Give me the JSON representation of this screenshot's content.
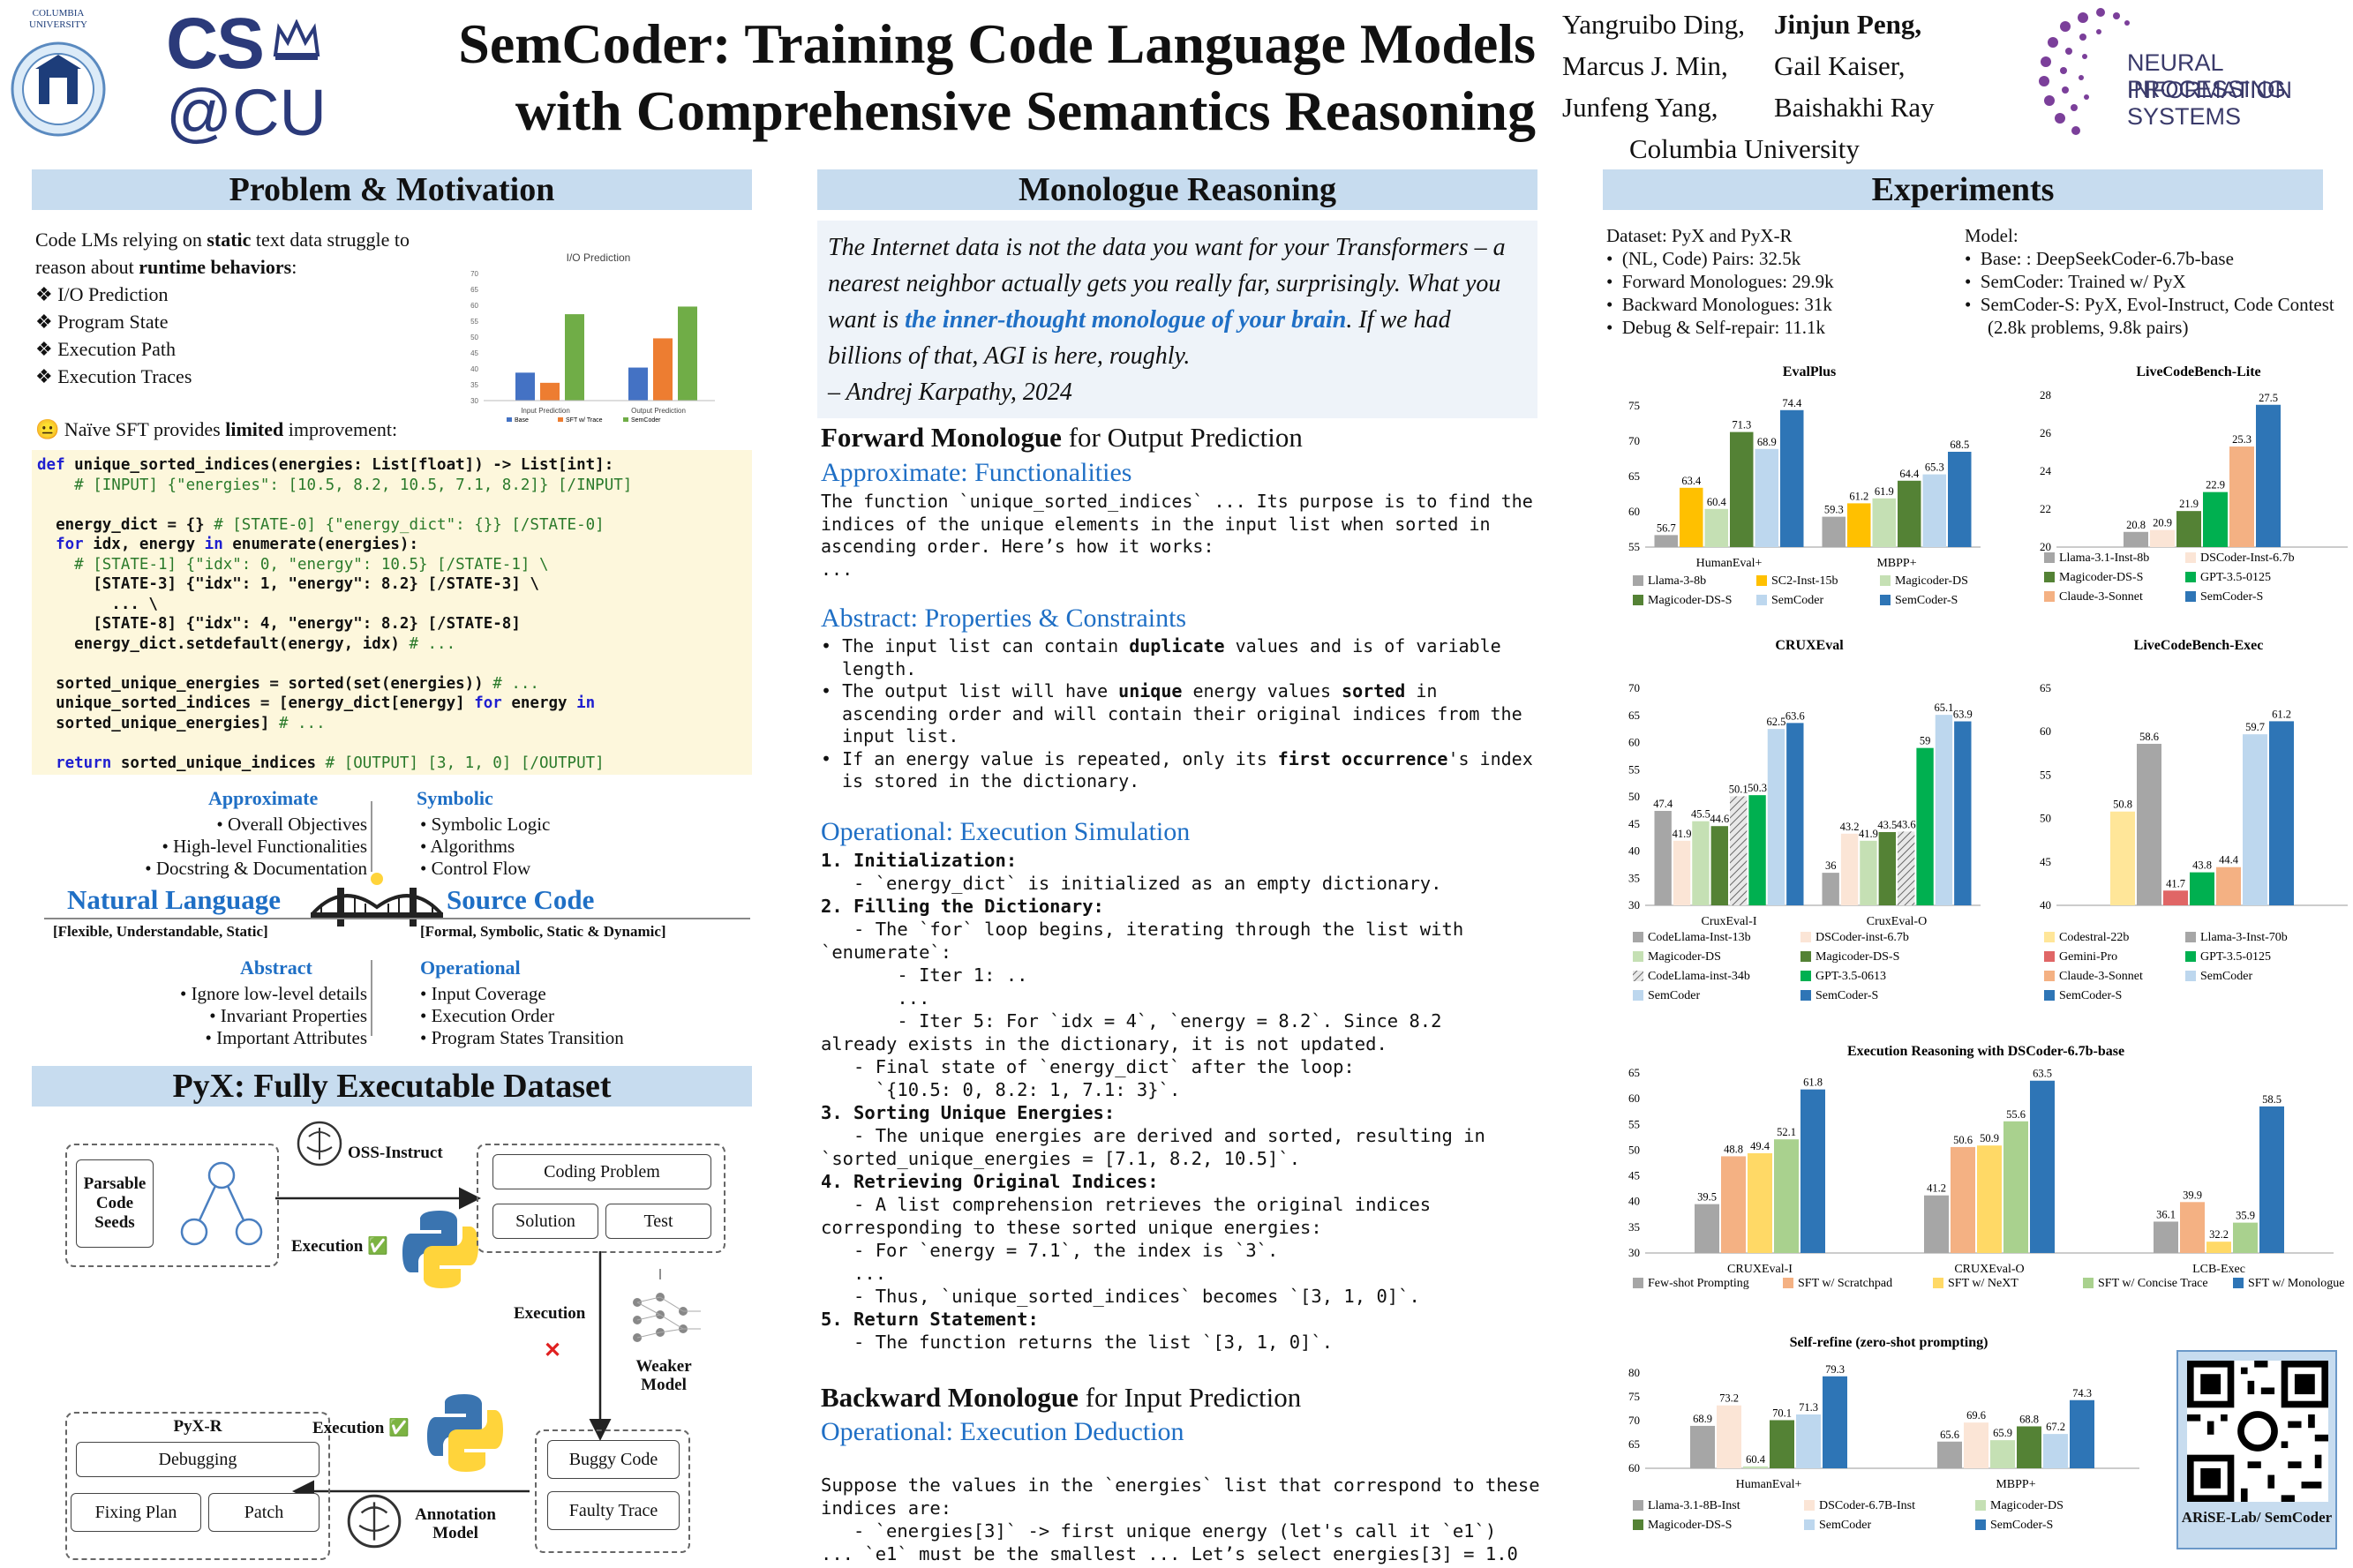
{
  "header": {
    "columbia_logo_text": "COLUMBIA UNIVERSITY",
    "cs_logo_line1": "CS",
    "cs_logo_line2": "@CU",
    "title_line1": "SemCoder: Training Code Language Models",
    "title_line2": "with Comprehensive Semantics Reasoning",
    "authors_col1": [
      "Yangruibo Ding,",
      "Marcus J. Min,",
      "Junfeng Yang,"
    ],
    "authors_col2": [
      "Jinjun Peng,",
      "Gail Kaiser,",
      "Baishakhi Ray"
    ],
    "affiliation": "Columbia University",
    "neurips_line1": "NEURAL INFORMATION",
    "neurips_line2": "PROCESSING SYSTEMS"
  },
  "sections": {
    "problem": "Problem & Motivation",
    "monologue": "Monologue Reasoning",
    "experiments": "Experiments",
    "pyx": "PyX: Fully Executable Dataset"
  },
  "problem": {
    "intro_a": "Code LMs relying on ",
    "intro_b": "static",
    "intro_c": " text data struggle to reason about ",
    "intro_d": "runtime behaviors",
    "intro_e": ":",
    "items": [
      "I/O Prediction",
      "Program State",
      "Execution Path",
      "Execution Traces"
    ],
    "naive_a": "Naïve SFT provides ",
    "naive_b": "limited",
    "naive_c": " improvement:"
  },
  "io_chart": {
    "title": "I/O Prediction",
    "categories": [
      "Input Prediction",
      "Output Prediction"
    ],
    "legend": [
      "Base",
      "SFT w/ Trace",
      "SemCoder"
    ],
    "yticks": [
      "70",
      "65",
      "60",
      "55",
      "50",
      "45",
      "40",
      "35",
      "30"
    ]
  },
  "code_lines": [
    "def unique_sorted_indices(energies: List[float]) -> List[int]:",
    "    # [INPUT] {\"energies\": [10.5, 8.2, 10.5, 7.1, 8.2]} [/INPUT]",
    "",
    "  energy_dict = {} # [STATE-0] {\"energy_dict\": {}} [/STATE-0]",
    "  for idx, energy in enumerate(energies):",
    "    # [STATE-1] {\"idx\": 0, \"energy\": 10.5} [/STATE-1] \\",
    "      [STATE-3] {\"idx\": 1, \"energy\": 8.2} [/STATE-3] \\",
    "        ... \\",
    "      [STATE-8] {\"idx\": 4, \"energy\": 8.2} [/STATE-8]",
    "    energy_dict.setdefault(energy, idx) # ...",
    "",
    "  sorted_unique_energies = sorted(set(energies)) # ...",
    "  unique_sorted_indices = [energy_dict[energy] for energy in",
    "  sorted_unique_energies] # ...",
    "",
    "  return sorted_unique_indices # [OUTPUT] [3, 1, 0] [/OUTPUT]"
  ],
  "bridge": {
    "approximate_title": "Approximate",
    "approximate_items": [
      "Overall Objectives",
      "High-level Functionalities",
      "Docstring & Documentation"
    ],
    "symbolic_title": "Symbolic",
    "symbolic_items": [
      "Symbolic Logic",
      "Algorithms",
      "Control Flow"
    ],
    "nl_title": "Natural Language",
    "nl_sub": "[Flexible, Understandable, Static]",
    "sc_title": "Source Code",
    "sc_sub": "[Formal, Symbolic, Static & Dynamic]",
    "abstract_title": "Abstract",
    "abstract_items": [
      "Ignore low-level details",
      "Invariant Properties",
      "Important Attributes"
    ],
    "operational_title": "Operational",
    "operational_items": [
      "Input Coverage",
      "Execution Order",
      "Program States Transition"
    ]
  },
  "pyx": {
    "seeds": "Parsable Code Seeds",
    "oss": "OSS-Instruct",
    "coding_problem": "Coding Problem",
    "solution": "Solution",
    "test": "Test",
    "execution1": "Execution",
    "execution2": "Execution",
    "execution3": "Execution",
    "weaker_model": "Weaker Model",
    "pyxr": "PyX-R",
    "debugging": "Debugging",
    "fixing_plan": "Fixing Plan",
    "patch": "Patch",
    "buggy_code": "Buggy Code",
    "faulty_trace": "Faulty Trace",
    "annotation_model": "Annotation Model",
    "check": "✅",
    "cross": "✕"
  },
  "monologue": {
    "quote_a": "The Internet data is not the data you want for your Transformers – a nearest neighbor actually gets you really far, surprisingly. What you want is ",
    "quote_b": "the inner-thought monologue of your brain",
    "quote_c": ". If we had billions of that, AGI is here, roughly.",
    "quote_author": "– Andrej Karpathy, 2024",
    "forward_a": "Forward Monologue",
    "forward_b": " for Output Prediction",
    "approx_head": "Approximate: Functionalities",
    "approx_text": "The function `unique_sorted_indices` ... Its purpose is to find the indices of the unique elements in the input list when sorted in ascending order. Here’s how it works:\n...",
    "abstract_head": "Abstract: Properties & Constraints",
    "abstract_bullets": [
      [
        "The input list can contain ",
        "duplicate",
        " values and is of variable length."
      ],
      [
        "The output list will have ",
        "unique",
        " energy values ",
        "sorted",
        " in ascending order and will contain their original indices from the input list."
      ],
      [
        "If an energy value is repeated, only its ",
        "first occurrence",
        "'s index is stored in the dictionary."
      ]
    ],
    "operational_head": "Operational: Execution Simulation",
    "operational_lines": [
      [
        "b",
        "1. Initialization:"
      ],
      [
        "n",
        "   - `energy_dict` is initialized as an empty dictionary."
      ],
      [
        "b",
        "2. Filling the Dictionary:"
      ],
      [
        "n",
        "   - The `for` loop begins, iterating through the list with"
      ],
      [
        "n",
        "`enumerate`:"
      ],
      [
        "n",
        "       - Iter 1: .."
      ],
      [
        "n",
        "       ..."
      ],
      [
        "n",
        "       - Iter 5: For `idx = 4`, `energy = 8.2`. Since 8.2"
      ],
      [
        "n",
        "already exists in the dictionary, it is not updated."
      ],
      [
        "n",
        "   - Final state of `energy_dict` after the loop:"
      ],
      [
        "n",
        "     `{10.5: 0, 8.2: 1, 7.1: 3}`."
      ],
      [
        "b",
        "3. Sorting Unique Energies:"
      ],
      [
        "n",
        "   - The unique energies are derived and sorted, resulting in"
      ],
      [
        "n",
        "`sorted_unique_energies = [7.1, 8.2, 10.5]`."
      ],
      [
        "b",
        "4. Retrieving Original Indices:"
      ],
      [
        "n",
        "   - A list comprehension retrieves the original indices"
      ],
      [
        "n",
        "corresponding to these sorted unique energies:"
      ],
      [
        "n",
        "   - For `energy = 7.1`, the index is `3`."
      ],
      [
        "n",
        "   ..."
      ],
      [
        "n",
        "   - Thus, `unique_sorted_indices` becomes `[3, 1, 0]`."
      ],
      [
        "b",
        "5. Return Statement:"
      ],
      [
        "n",
        "   - The function returns the list `[3, 1, 0]`."
      ]
    ],
    "backward_a": "Backward Monologue",
    "backward_b": " for Input Prediction",
    "deduction_head": "Operational: Execution Deduction",
    "deduction_lines": [
      "Suppose the values in the `energies` list that correspond to these",
      "indices are:",
      "   - `energies[3]` -> first unique energy (let's call it `e1`)",
      "... `e1` must be the smallest ... Let’s select energies[3] = 1.0"
    ]
  },
  "experiments": {
    "dataset_title": "Dataset: PyX and PyX-R",
    "dataset_items": [
      "(NL, Code) Pairs: 32.5k",
      "Forward Monologues: 29.9k",
      "Backward Monologues: 31k",
      "Debug & Self-repair: 11.1k"
    ],
    "model_title": "Model:",
    "model_items": [
      "Base: : DeepSeekCoder-6.7b-base",
      "SemCoder: Trained w/ PyX",
      "SemCoder-S: PyX, Evol-Instruct, Code Contest (2.8k problems, 9.8k pairs)"
    ],
    "qr_caption": "ARiSE-Lab/ SemCoder"
  },
  "chart_data": [
    {
      "type": "bar",
      "title": "EvalPlus",
      "categories": [
        "HumanEval+",
        "MBPP+"
      ],
      "ylim": [
        55,
        75
      ],
      "yticks": [
        55,
        60,
        65,
        70,
        75
      ],
      "series": [
        {
          "name": "Llama-3-8b",
          "color": "#a6a6a6",
          "values": [
            56.7,
            59.3
          ]
        },
        {
          "name": "SC2-Inst-15b",
          "color": "#ffc000",
          "values": [
            63.4,
            61.2
          ]
        },
        {
          "name": "Magicoder-DS",
          "color": "#c5e0b4",
          "values": [
            60.4,
            61.9
          ]
        },
        {
          "name": "Magicoder-DS-S",
          "color": "#548235",
          "values": [
            71.3,
            64.4
          ]
        },
        {
          "name": "SemCoder",
          "color": "#bdd7ee",
          "values": [
            68.9,
            65.3
          ]
        },
        {
          "name": "SemCoder-S",
          "color": "#2e75b6",
          "values": [
            74.4,
            68.5
          ]
        }
      ]
    },
    {
      "type": "bar",
      "title": "LiveCodeBench-Lite",
      "categories": [
        ""
      ],
      "ylim": [
        20,
        28
      ],
      "yticks": [
        20,
        22,
        24,
        26,
        28
      ],
      "series": [
        {
          "name": "Llama-3.1-Inst-8b",
          "color": "#a6a6a6",
          "values": [
            20.8
          ]
        },
        {
          "name": "DSCoder-Inst-6.7b",
          "color": "#fbe5d6",
          "values": [
            20.9
          ]
        },
        {
          "name": "Magicoder-DS-S",
          "color": "#548235",
          "values": [
            21.9
          ]
        },
        {
          "name": "GPT-3.5-0125",
          "color": "#00b050",
          "values": [
            22.9
          ]
        },
        {
          "name": "Claude-3-Sonnet",
          "color": "#f4b183",
          "values": [
            25.3
          ]
        },
        {
          "name": "SemCoder-S",
          "color": "#2e75b6",
          "values": [
            27.5
          ]
        }
      ]
    },
    {
      "type": "bar",
      "title": "CRUXEval",
      "categories": [
        "CruxEval-I",
        "CruxEval-O"
      ],
      "ylim": [
        30,
        70
      ],
      "yticks": [
        30,
        35,
        40,
        45,
        50,
        55,
        60,
        65,
        70
      ],
      "series": [
        {
          "name": "CodeLlama-Inst-13b",
          "color": "#a6a6a6",
          "values": [
            47.4,
            36
          ]
        },
        {
          "name": "DSCoder-inst-6.7b",
          "color": "#fbe5d6",
          "values": [
            41.9,
            43.2
          ]
        },
        {
          "name": "Magicoder-DS",
          "color": "#c5e0b4",
          "values": [
            45.5,
            41.9
          ]
        },
        {
          "name": "Magicoder-DS-S",
          "color": "#548235",
          "values": [
            44.6,
            43.5
          ]
        },
        {
          "name": "CodeLlama-inst-34b",
          "color": "#d9d9d9",
          "hatch": true,
          "values": [
            50.1,
            43.6
          ]
        },
        {
          "name": "GPT-3.5-0613",
          "color": "#00b050",
          "values": [
            50.3,
            59
          ]
        },
        {
          "name": "SemCoder",
          "color": "#bdd7ee",
          "values": [
            62.5,
            65.1
          ]
        },
        {
          "name": "SemCoder-S",
          "color": "#2e75b6",
          "values": [
            63.6,
            63.9
          ]
        }
      ]
    },
    {
      "type": "bar",
      "title": "LiveCodeBench-Exec",
      "categories": [
        ""
      ],
      "ylim": [
        40,
        65
      ],
      "yticks": [
        40,
        45,
        50,
        55,
        60,
        65
      ],
      "series": [
        {
          "name": "Codestral-22b",
          "color": "#ffe699",
          "values": [
            50.8
          ]
        },
        {
          "name": "Llama-3-Inst-70b",
          "color": "#a6a6a6",
          "values": [
            58.6
          ]
        },
        {
          "name": "Gemini-Pro",
          "color": "#e06666",
          "values": [
            41.7
          ]
        },
        {
          "name": "GPT-3.5-0125",
          "color": "#00b050",
          "values": [
            43.8
          ]
        },
        {
          "name": "Claude-3-Sonnet",
          "color": "#f4b183",
          "values": [
            44.4
          ]
        },
        {
          "name": "SemCoder",
          "color": "#bdd7ee",
          "values": [
            59.7
          ]
        },
        {
          "name": "SemCoder-S",
          "color": "#2e75b6",
          "values": [
            61.2
          ]
        }
      ]
    },
    {
      "type": "bar",
      "title": "Execution Reasoning with DSCoder-6.7b-base",
      "categories": [
        "CRUXEval-I",
        "CRUXEval-O",
        "LCB-Exec"
      ],
      "ylim": [
        30,
        65
      ],
      "yticks": [
        30,
        35,
        40,
        45,
        50,
        55,
        60,
        65
      ],
      "series": [
        {
          "name": "Few-shot Prompting",
          "color": "#a6a6a6",
          "values": [
            39.5,
            41.2,
            36.1
          ]
        },
        {
          "name": "SFT w/ Scratchpad",
          "color": "#f4b183",
          "values": [
            48.8,
            50.6,
            39.9
          ]
        },
        {
          "name": "SFT w/ NeXT",
          "color": "#ffd966",
          "values": [
            49.4,
            50.9,
            32.2
          ]
        },
        {
          "name": "SFT w/ Concise Trace",
          "color": "#a9d18e",
          "values": [
            52.1,
            55.6,
            35.9
          ]
        },
        {
          "name": "SFT w/ Monologue",
          "color": "#2e75b6",
          "values": [
            61.8,
            63.5,
            58.5
          ]
        }
      ]
    },
    {
      "type": "bar",
      "title": "Self-refine (zero-shot prompting)",
      "categories": [
        "HumanEval+",
        "MBPP+"
      ],
      "ylim": [
        60,
        80
      ],
      "yticks": [
        60,
        65,
        70,
        75,
        80
      ],
      "series": [
        {
          "name": "Llama-3.1-8B-Inst",
          "color": "#a6a6a6",
          "values": [
            68.9,
            65.6
          ]
        },
        {
          "name": "DSCoder-6.7B-Inst",
          "color": "#fbe5d6",
          "values": [
            73.2,
            69.6
          ]
        },
        {
          "name": "Magicoder-DS",
          "color": "#c5e0b4",
          "values": [
            60.4,
            65.9
          ]
        },
        {
          "name": "Magicoder-DS-S",
          "color": "#548235",
          "values": [
            70.1,
            68.8
          ]
        },
        {
          "name": "SemCoder",
          "color": "#bdd7ee",
          "values": [
            71.3,
            67.2
          ]
        },
        {
          "name": "SemCoder-S",
          "color": "#2e75b6",
          "values": [
            79.3,
            74.3
          ]
        }
      ]
    }
  ]
}
